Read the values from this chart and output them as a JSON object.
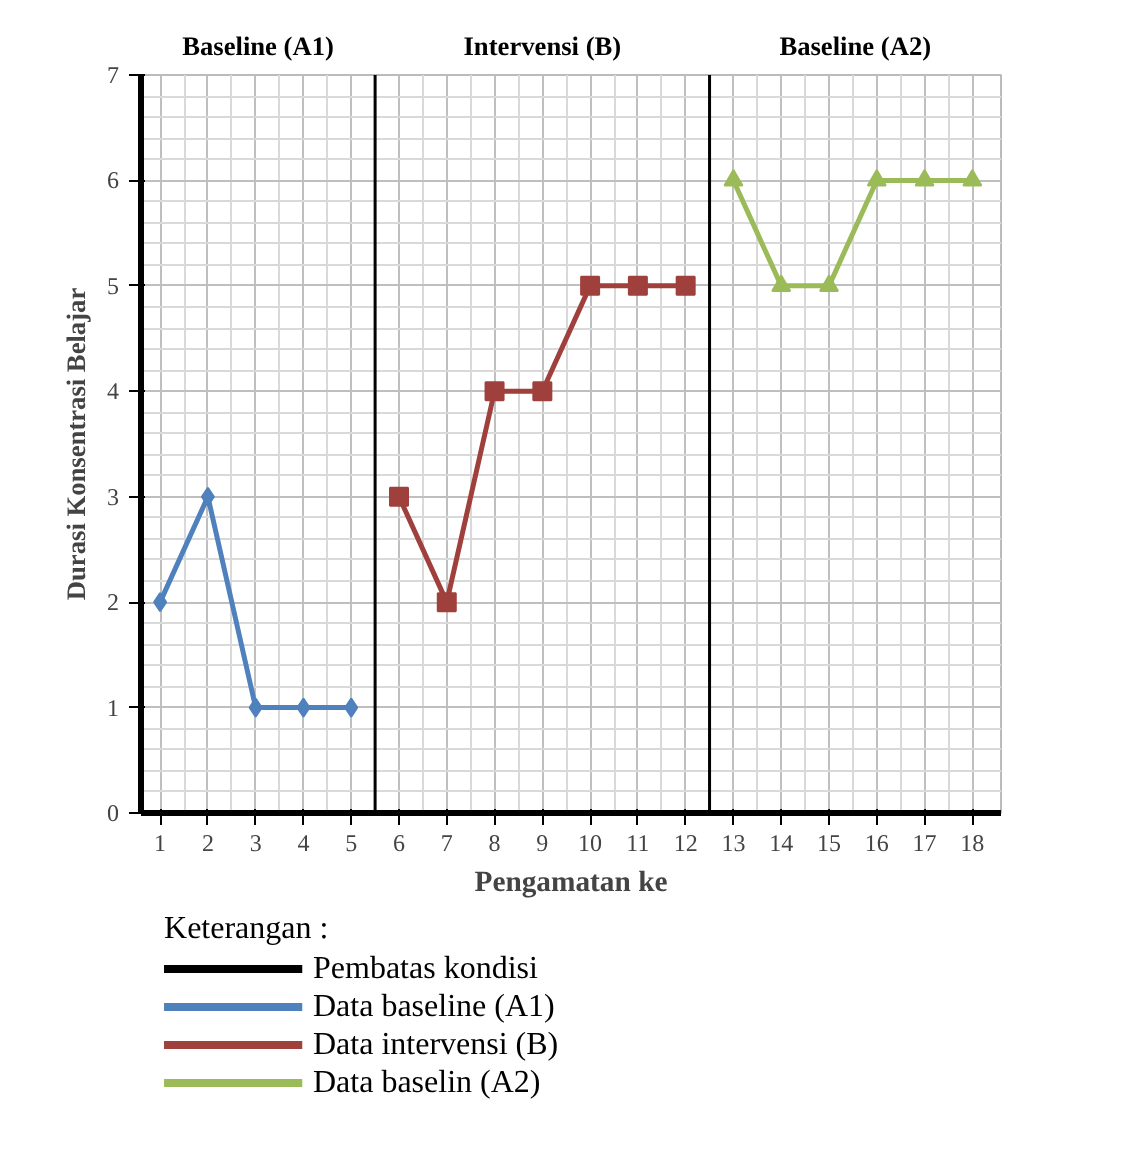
{
  "chart_data": {
    "type": "line",
    "xlabel": "Pengamatan ke",
    "ylabel": "Durasi Konsentrasi Belajar",
    "legend_title": "Keterangan :",
    "series": [
      {
        "name": "Data baseline (A1)",
        "color": "#4f81bd",
        "marker": "diamond",
        "x": [
          1,
          2,
          3,
          4,
          5
        ],
        "values": [
          2,
          3,
          1,
          1,
          1
        ]
      },
      {
        "name": "Data intervensi (B)",
        "color": "#a0403d",
        "marker": "square",
        "x": [
          6,
          7,
          8,
          9,
          10,
          11,
          12
        ],
        "values": [
          3,
          2,
          4,
          4,
          5,
          5,
          5
        ]
      },
      {
        "name": "Data baselin (A2)",
        "color": "#9bbb59",
        "marker": "triangle",
        "x": [
          13,
          14,
          15,
          16,
          17,
          18
        ],
        "values": [
          6,
          5,
          5,
          6,
          6,
          6
        ]
      }
    ],
    "ref_lines": [
      {
        "axis": "x",
        "value": 5.5,
        "label": "Pembatas kondisi",
        "color": "#000000"
      },
      {
        "axis": "x",
        "value": 12.5,
        "color": "#000000"
      }
    ],
    "annotations": [
      "Baseline (A1)",
      "Intervensi (B)",
      "Baseline (A2)"
    ],
    "xlim": [
      0.6,
      18.6
    ],
    "xticks": [
      1,
      2,
      3,
      4,
      5,
      6,
      7,
      8,
      9,
      10,
      11,
      12,
      13,
      14,
      15,
      16,
      17,
      18
    ],
    "ylim": [
      0,
      7
    ],
    "yticks": [
      0,
      1,
      2,
      3,
      4,
      5,
      6,
      7
    ],
    "grid": true,
    "legend": "bottom",
    "line_style": "solid"
  }
}
